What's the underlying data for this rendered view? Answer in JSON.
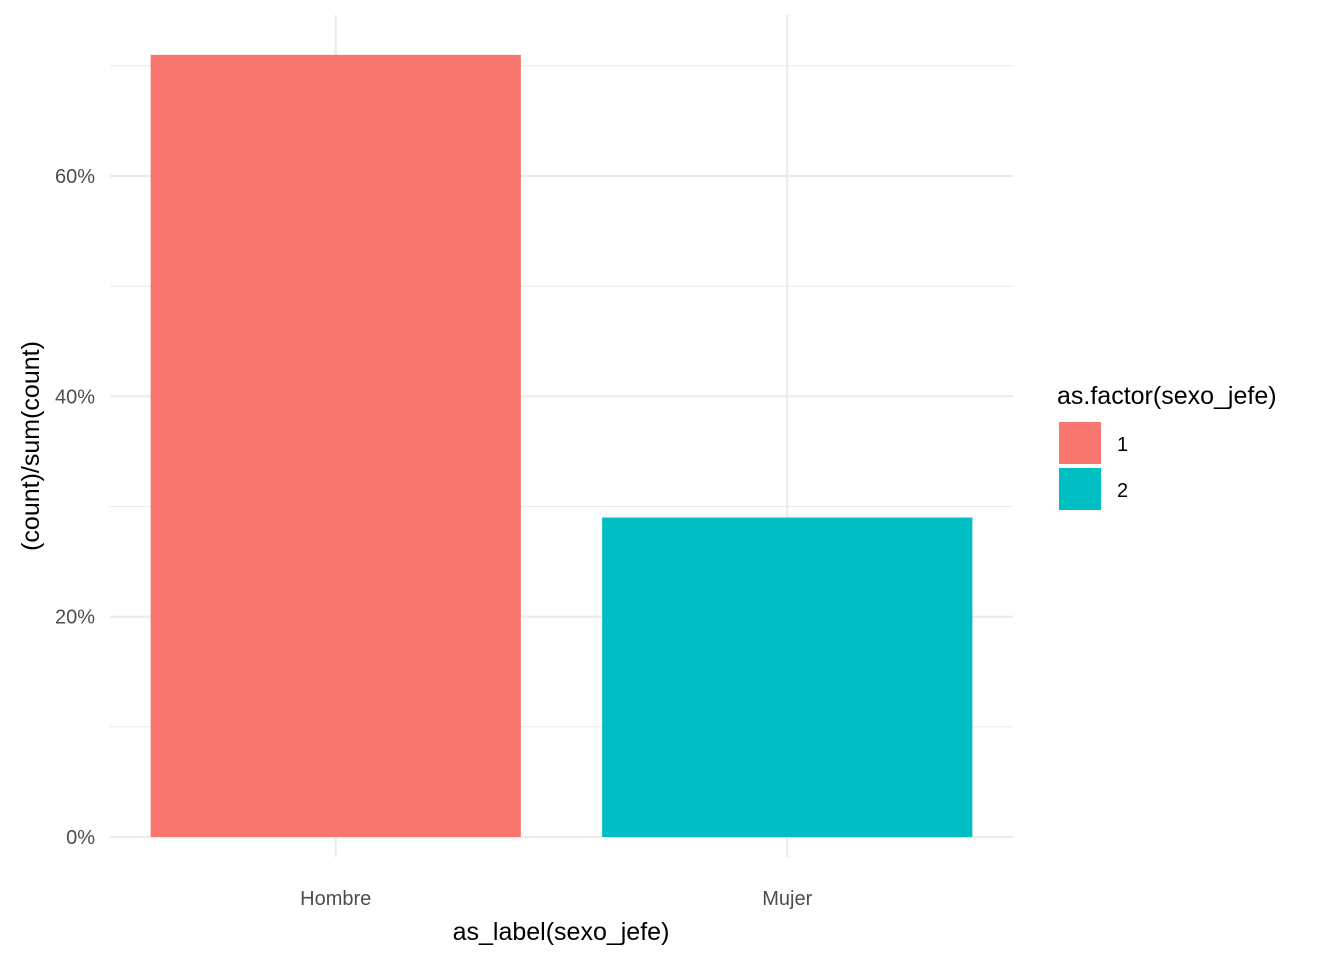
{
  "chart_data": {
    "type": "bar",
    "categories": [
      "Hombre",
      "Mujer"
    ],
    "values": [
      0.71,
      0.29
    ],
    "xlabel": "as_label(sexo_jefe)",
    "ylabel": "(count)/sum(count)",
    "ylim": [
      0,
      0.75
    ],
    "yticks": [
      0,
      0.2,
      0.4,
      0.6
    ],
    "ytick_labels": [
      "0%",
      "20%",
      "40%",
      "60%"
    ],
    "grid": true,
    "legend": {
      "title": "as.factor(sexo_jefe)",
      "placement": "right",
      "entries": [
        {
          "label": "1",
          "color": "#F8766D"
        },
        {
          "label": "2",
          "color": "#00BFC4"
        }
      ]
    },
    "bar_colors": [
      "#F8766D",
      "#00BFC4"
    ]
  }
}
